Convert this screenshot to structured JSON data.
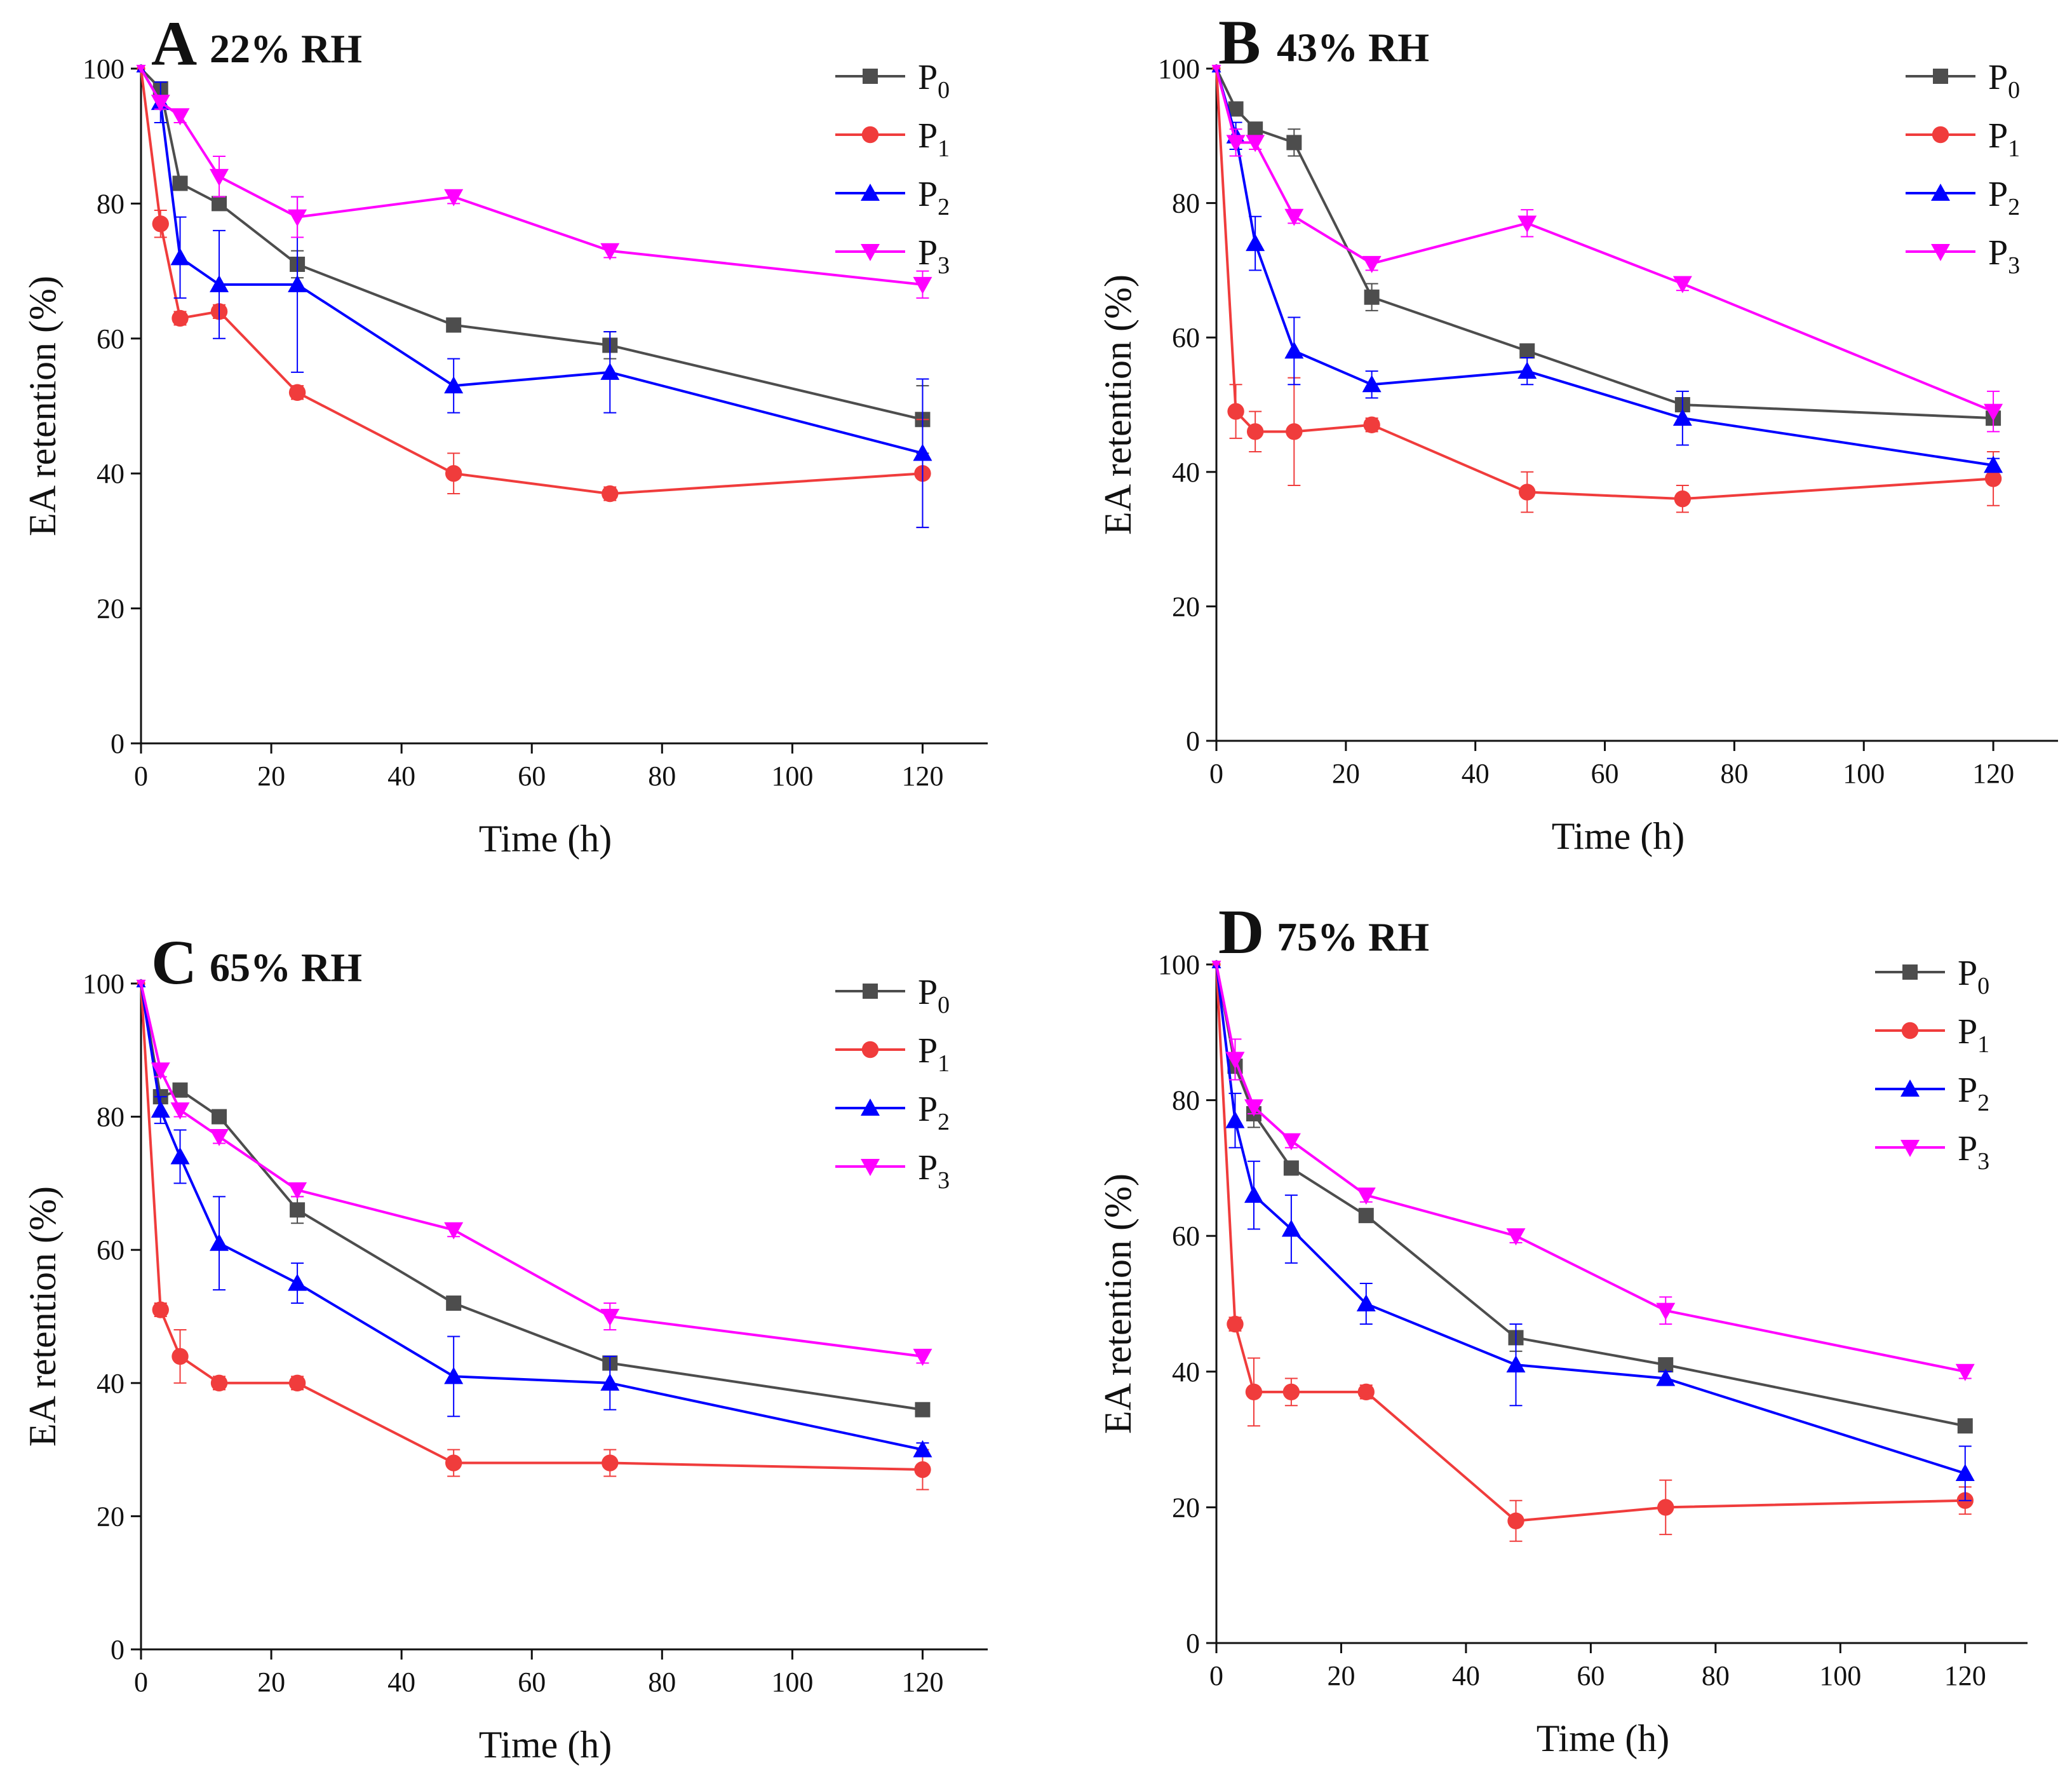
{
  "figure": {
    "x_label": "Time (h)",
    "y_label": "EA retention (%)"
  },
  "chart_data": [
    {
      "type": "line",
      "panel": "A",
      "title": "22% RH",
      "xlabel": "Time (h)",
      "ylabel": "EA retention (%)",
      "xlim": [
        0,
        130
      ],
      "ylim": [
        0,
        100
      ],
      "xticks": [
        0,
        20,
        40,
        60,
        80,
        100,
        120
      ],
      "yticks": [
        0,
        20,
        40,
        60,
        80,
        100
      ],
      "x": [
        0,
        3,
        6,
        12,
        24,
        48,
        72,
        120
      ],
      "legend_position": "top-right",
      "series": [
        {
          "name": "P",
          "sub": "0",
          "color": "#4d4d4d",
          "marker": "square",
          "values": [
            100,
            97,
            83,
            80,
            71,
            62,
            59,
            48
          ],
          "err": [
            0,
            1,
            1,
            1,
            2,
            1,
            2,
            5
          ]
        },
        {
          "name": "P",
          "sub": "1",
          "color": "#f03c3c",
          "marker": "circle",
          "values": [
            100,
            77,
            63,
            64,
            52,
            40,
            37,
            40
          ],
          "err": [
            0,
            2,
            1,
            1,
            1,
            3,
            1,
            8
          ]
        },
        {
          "name": "P",
          "sub": "2",
          "color": "#0000ff",
          "marker": "triangle-up",
          "values": [
            100,
            95,
            72,
            68,
            68,
            53,
            55,
            43
          ],
          "err": [
            0,
            3,
            6,
            8,
            13,
            4,
            6,
            11
          ]
        },
        {
          "name": "P",
          "sub": "3",
          "color": "#ff00ff",
          "marker": "triangle-down",
          "values": [
            100,
            95,
            93,
            84,
            78,
            81,
            73,
            68
          ],
          "err": [
            0,
            1,
            1,
            3,
            3,
            1,
            1,
            2
          ]
        }
      ]
    },
    {
      "type": "line",
      "panel": "B",
      "title": "43% RH",
      "xlabel": "Time (h)",
      "ylabel": "EA retention (%)",
      "xlim": [
        0,
        130
      ],
      "ylim": [
        0,
        100
      ],
      "xticks": [
        0,
        20,
        40,
        60,
        80,
        100,
        120
      ],
      "yticks": [
        0,
        20,
        40,
        60,
        80,
        100
      ],
      "x": [
        0,
        3,
        6,
        12,
        24,
        48,
        72,
        120
      ],
      "legend_position": "top-right",
      "series": [
        {
          "name": "P",
          "sub": "0",
          "color": "#4d4d4d",
          "marker": "square",
          "values": [
            100,
            94,
            91,
            89,
            66,
            58,
            50,
            48
          ],
          "err": [
            0,
            1,
            1,
            2,
            2,
            1,
            1,
            1
          ]
        },
        {
          "name": "P",
          "sub": "1",
          "color": "#f03c3c",
          "marker": "circle",
          "values": [
            100,
            49,
            46,
            46,
            47,
            37,
            36,
            39
          ],
          "err": [
            0,
            4,
            3,
            8,
            1,
            3,
            2,
            4
          ]
        },
        {
          "name": "P",
          "sub": "2",
          "color": "#0000ff",
          "marker": "triangle-up",
          "values": [
            100,
            90,
            74,
            58,
            53,
            55,
            48,
            41
          ],
          "err": [
            0,
            2,
            4,
            5,
            2,
            2,
            4,
            1
          ]
        },
        {
          "name": "P",
          "sub": "3",
          "color": "#ff00ff",
          "marker": "triangle-down",
          "values": [
            100,
            89,
            89,
            78,
            71,
            77,
            68,
            49
          ],
          "err": [
            0,
            2,
            1,
            1,
            1,
            2,
            1,
            3
          ]
        }
      ]
    },
    {
      "type": "line",
      "panel": "C",
      "title": "65% RH",
      "xlabel": "Time (h)",
      "ylabel": "EA retention (%)",
      "xlim": [
        0,
        130
      ],
      "ylim": [
        0,
        100
      ],
      "xticks": [
        0,
        20,
        40,
        60,
        80,
        100,
        120
      ],
      "yticks": [
        0,
        20,
        40,
        60,
        80,
        100
      ],
      "x": [
        0,
        3,
        6,
        12,
        24,
        48,
        72,
        120
      ],
      "legend_position": "top-right",
      "series": [
        {
          "name": "P",
          "sub": "0",
          "color": "#4d4d4d",
          "marker": "square",
          "values": [
            100,
            83,
            84,
            80,
            66,
            52,
            43,
            36
          ],
          "err": [
            0,
            1,
            1,
            1,
            2,
            1,
            1,
            1
          ]
        },
        {
          "name": "P",
          "sub": "1",
          "color": "#f03c3c",
          "marker": "circle",
          "values": [
            100,
            51,
            44,
            40,
            40,
            28,
            28,
            27
          ],
          "err": [
            0,
            1,
            4,
            1,
            1,
            2,
            2,
            3
          ]
        },
        {
          "name": "P",
          "sub": "2",
          "color": "#0000ff",
          "marker": "triangle-up",
          "values": [
            100,
            81,
            74,
            61,
            55,
            41,
            40,
            30
          ],
          "err": [
            0,
            2,
            4,
            7,
            3,
            6,
            4,
            1
          ]
        },
        {
          "name": "P",
          "sub": "3",
          "color": "#ff00ff",
          "marker": "triangle-down",
          "values": [
            100,
            87,
            81,
            77,
            69,
            63,
            50,
            44
          ],
          "err": [
            0,
            1,
            1,
            1,
            1,
            1,
            2,
            1
          ]
        }
      ]
    },
    {
      "type": "line",
      "panel": "D",
      "title": "75% RH",
      "xlabel": "Time (h)",
      "ylabel": "EA retention (%)",
      "xlim": [
        0,
        130
      ],
      "ylim": [
        0,
        100
      ],
      "xticks": [
        0,
        20,
        40,
        60,
        80,
        100,
        120
      ],
      "yticks": [
        0,
        20,
        40,
        60,
        80,
        100
      ],
      "x": [
        0,
        3,
        6,
        12,
        24,
        48,
        72,
        120
      ],
      "legend_position": "top-right",
      "series": [
        {
          "name": "P",
          "sub": "0",
          "color": "#4d4d4d",
          "marker": "square",
          "values": [
            100,
            85,
            78,
            70,
            63,
            45,
            41,
            32
          ],
          "err": [
            0,
            1,
            2,
            1,
            1,
            2,
            1,
            1
          ]
        },
        {
          "name": "P",
          "sub": "1",
          "color": "#f03c3c",
          "marker": "circle",
          "values": [
            100,
            47,
            37,
            37,
            37,
            18,
            20,
            21
          ],
          "err": [
            0,
            1,
            5,
            2,
            1,
            3,
            4,
            2
          ]
        },
        {
          "name": "P",
          "sub": "2",
          "color": "#0000ff",
          "marker": "triangle-up",
          "values": [
            100,
            77,
            66,
            61,
            50,
            41,
            39,
            25
          ],
          "err": [
            0,
            4,
            5,
            5,
            3,
            6,
            1,
            4
          ]
        },
        {
          "name": "P",
          "sub": "3",
          "color": "#ff00ff",
          "marker": "triangle-down",
          "values": [
            100,
            86,
            79,
            74,
            66,
            60,
            49,
            40
          ],
          "err": [
            0,
            3,
            1,
            1,
            1,
            1,
            2,
            1
          ]
        }
      ]
    }
  ]
}
